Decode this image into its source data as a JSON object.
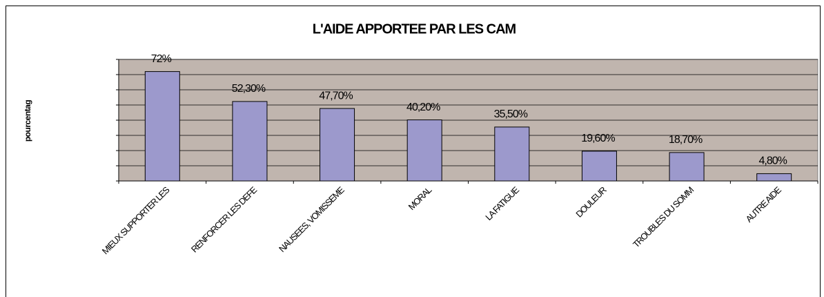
{
  "chart_data": {
    "type": "bar",
    "title": "L'AIDE APPORTEE PAR LES CAM",
    "y_label": "pourcentag",
    "categories": [
      "MIEUX SUPPORTER LES",
      "RENFORCER LES DEFE",
      "NAUSEES, VOMISSEME",
      "MORAL",
      "LA FATIGUE",
      "DOULEUR",
      "TROUBLES DU SOMM",
      "AUTRE AIDE"
    ],
    "values": [
      72,
      52.3,
      47.7,
      40.2,
      35.5,
      19.6,
      18.7,
      4.8
    ],
    "value_labels": [
      "72%",
      "52,30%",
      "47,70%",
      "40,20%",
      "35,50%",
      "19,60%",
      "18,70%",
      "4,80%"
    ],
    "color": "#9c99cc",
    "plot_background": "#c0b5ae",
    "ylim": [
      0,
      80
    ],
    "yticks": [
      0,
      10,
      20,
      30,
      40,
      50,
      60,
      70,
      80
    ],
    "grid": true
  }
}
